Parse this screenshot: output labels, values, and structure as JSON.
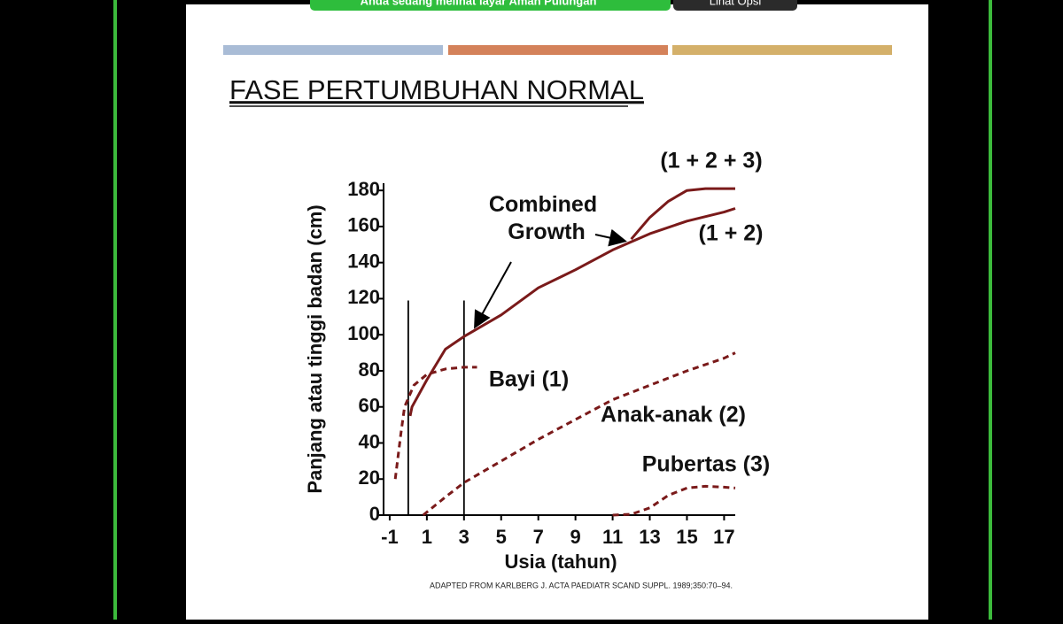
{
  "banner": {
    "message": "Anda sedang melihat layar Aman Pulungan",
    "button": "Lihat Opsi"
  },
  "slide": {
    "source": "ADAPTED FROM KARLBERG J. ACTA PAEDIATR SCAND SUPPL. 1989;350:70–94."
  },
  "chart_data": {
    "type": "line",
    "title": "FASE PERTUMBUHAN NORMAL",
    "annotation": "Combined Growth",
    "x_label": "Usia (tahun)",
    "y_label": "Panjang atau tinggi badan (cm)",
    "xlim": [
      -1.33,
      17.6
    ],
    "xticks": [
      -1,
      1,
      3,
      5,
      7,
      9,
      11,
      13,
      15,
      17
    ],
    "ylim": [
      0,
      184
    ],
    "yticks": [
      0,
      20,
      40,
      60,
      80,
      100,
      120,
      140,
      160,
      180
    ],
    "markers": {
      "x": [
        0,
        3
      ],
      "top": 119
    },
    "series": [
      {
        "name": "(1 + 2 + 3)",
        "color": "#7a1a1a",
        "dashed": false,
        "x": [
          12,
          13,
          14,
          15,
          16,
          17,
          17.6
        ],
        "values": [
          153,
          165,
          174,
          180,
          181,
          181,
          181
        ]
      },
      {
        "name": "(1 + 2)",
        "color": "#7a1a1a",
        "dashed": false,
        "x": [
          0.1,
          0.2,
          1,
          2,
          3,
          5,
          7,
          9,
          11,
          13,
          15,
          17,
          17.6
        ],
        "values": [
          55,
          60,
          75,
          92,
          99,
          111,
          126,
          136,
          147,
          156,
          163,
          168,
          170
        ]
      },
      {
        "name": "Bayi (1)",
        "color": "#7a1a1a",
        "dashed": true,
        "x": [
          -0.7,
          -0.4,
          -0.2,
          0.3,
          1,
          2,
          3,
          3.7
        ],
        "values": [
          20,
          45,
          60,
          72,
          78,
          81,
          82,
          82
        ]
      },
      {
        "name": "Anak-anak (2)",
        "color": "#7a1a1a",
        "dashed": true,
        "x": [
          0.8,
          2,
          3,
          5,
          7,
          9,
          11,
          13,
          15,
          17,
          17.6
        ],
        "values": [
          0,
          10,
          18,
          30,
          42,
          53,
          64,
          72,
          80,
          87,
          90
        ]
      },
      {
        "name": "Pubertas (3)",
        "color": "#7a1a1a",
        "dashed": true,
        "x": [
          11,
          12,
          13,
          14,
          15,
          16,
          17,
          17.6
        ],
        "values": [
          0,
          0.5,
          4,
          11,
          15,
          16,
          15.5,
          15
        ]
      }
    ]
  }
}
